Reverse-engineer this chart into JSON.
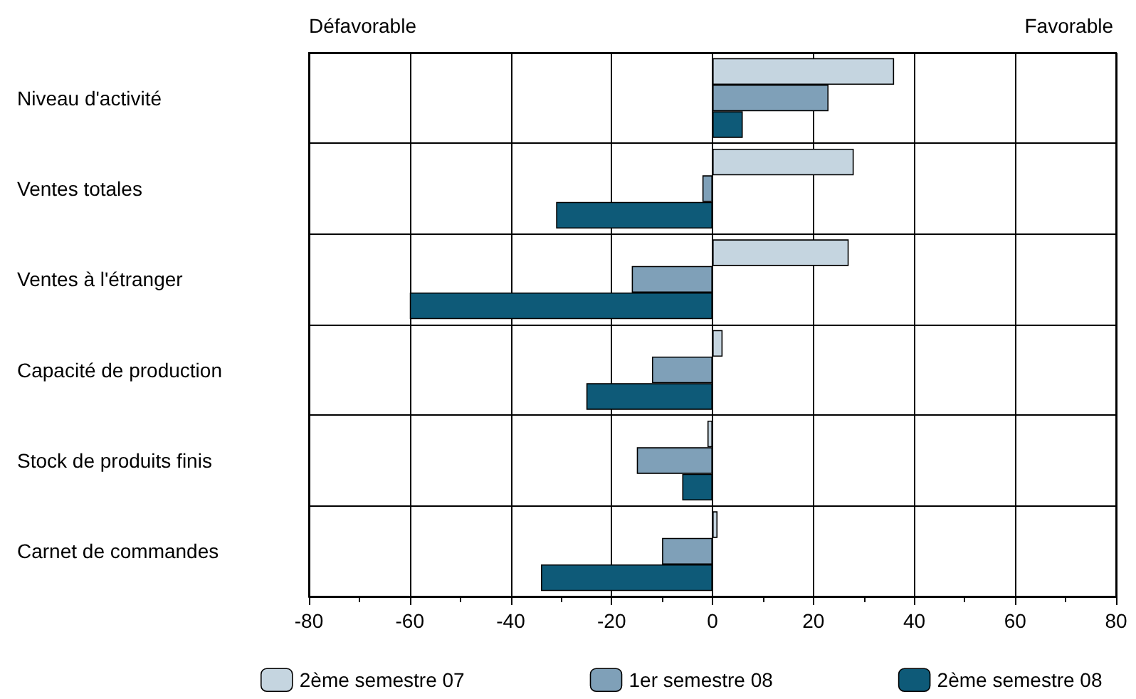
{
  "chart_data": {
    "type": "bar",
    "orientation": "horizontal",
    "categories": [
      "Niveau d'activité",
      "Ventes totales",
      "Ventes à l'étranger",
      "Capacité de production",
      "Stock de produits finis",
      "Carnet de commandes"
    ],
    "series": [
      {
        "name": "2ème semestre 07",
        "color": "#c5d5e0",
        "values": [
          36,
          28,
          27,
          2,
          -1,
          1
        ]
      },
      {
        "name": "1er semestre 08",
        "color": "#7fa0b8",
        "values": [
          23,
          -2,
          -16,
          -12,
          -15,
          -10
        ]
      },
      {
        "name": "2ème semestre 08",
        "color": "#0e5a78",
        "values": [
          6,
          -31,
          -60,
          -25,
          -6,
          -34
        ]
      }
    ],
    "xlim": [
      -80,
      80
    ],
    "xticks": [
      -80,
      -60,
      -40,
      -20,
      0,
      20,
      40,
      60,
      80
    ],
    "grid": true,
    "legend": "bottom",
    "annotations": [
      "Défavorable",
      "Favorable"
    ]
  }
}
